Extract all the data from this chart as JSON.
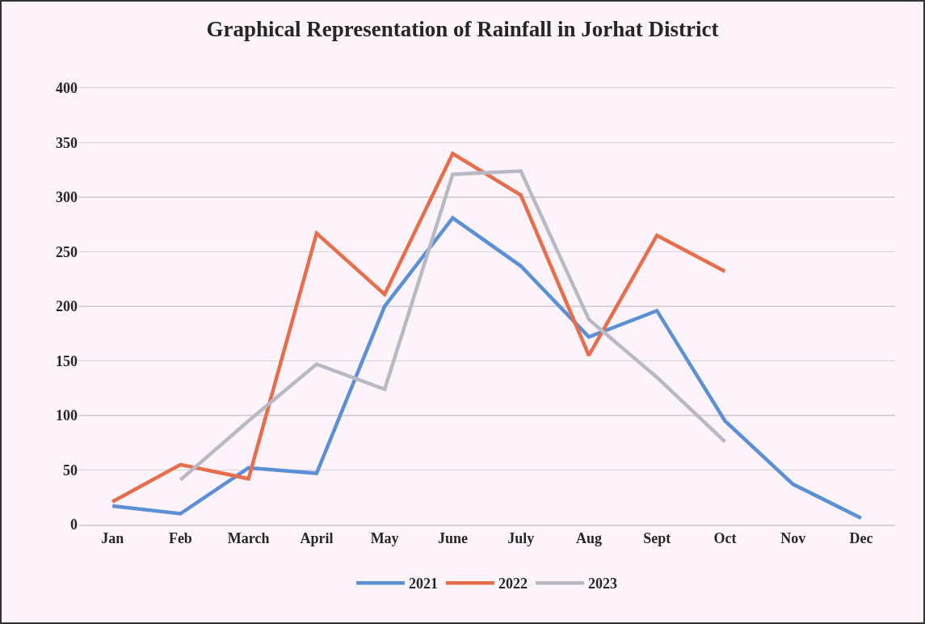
{
  "chart_data": {
    "type": "line",
    "title": "Graphical Representation of Rainfall in Jorhat District",
    "categories": [
      "Jan",
      "Feb",
      "March",
      "April",
      "May",
      "June",
      "July",
      "Aug",
      "Sept",
      "Oct",
      "Nov",
      "Dec"
    ],
    "series": [
      {
        "name": "2021",
        "color": "#5b8fd6",
        "values": [
          17,
          10,
          52,
          47,
          200,
          281,
          237,
          172,
          196,
          95,
          37,
          6
        ]
      },
      {
        "name": "2022",
        "color": "#e86d4b",
        "values": [
          21,
          55,
          42,
          267,
          211,
          340,
          302,
          155,
          265,
          232,
          null,
          null
        ]
      },
      {
        "name": "2023",
        "color": "#b9b9c6",
        "values": [
          null,
          41,
          95,
          147,
          124,
          321,
          324,
          188,
          135,
          76,
          null,
          null
        ]
      }
    ],
    "ylim": [
      0,
      400
    ],
    "yticks": [
      0,
      50,
      100,
      150,
      200,
      250,
      300,
      350,
      400
    ],
    "grid": "y",
    "legend": "bottom",
    "marker": "none",
    "line_style": "solid"
  }
}
